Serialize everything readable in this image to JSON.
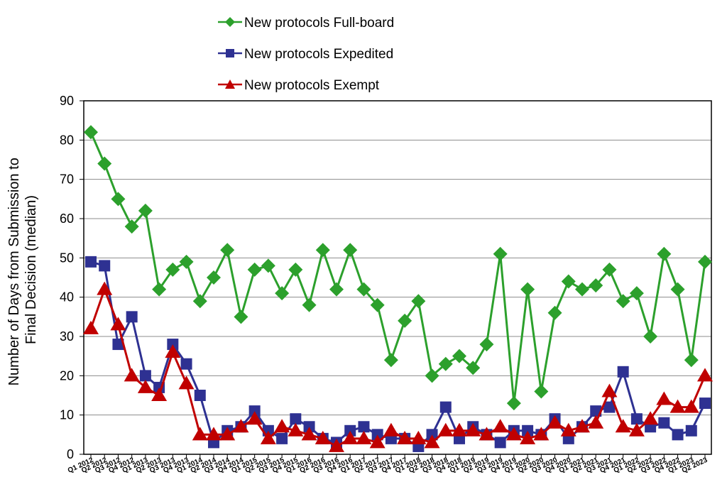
{
  "chart_data": {
    "type": "line",
    "ylabel_lines": [
      "Number of Days from Submission to",
      "Final Decision (median)"
    ],
    "xlabel": "",
    "ylim": [
      0,
      90
    ],
    "yticks": [
      0,
      10,
      20,
      30,
      40,
      50,
      60,
      70,
      80,
      90
    ],
    "grid": true,
    "legend_position": "top",
    "categories": [
      "Q1 2012",
      "Q2 2012",
      "Q3 2012",
      "Q4 2012",
      "Q1 2013",
      "Q2 2013",
      "Q3 2013",
      "Q4 2013",
      "Q1 2014",
      "Q2 2014",
      "Q3 2014",
      "Q4 2014",
      "Q1 2015",
      "Q2 2015",
      "Q3 2015",
      "Q4 2015",
      "Q1 2016",
      "Q2 2016",
      "Q3 2016",
      "Q4 2016",
      "Q1 2017",
      "Q2 2017",
      "Q3 2017",
      "Q4 2017",
      "Q1 2018",
      "Q2 2018",
      "Q3 2018",
      "Q4 2018",
      "Q1 2019",
      "Q2 2019",
      "Q3 2019",
      "Q4 2019",
      "Q1 2020",
      "Q2 2020",
      "Q3 2020",
      "Q4 2020",
      "Q1 2021",
      "Q2 2021",
      "Q3 2021",
      "Q4 2021",
      "Q1 2022",
      "Q2 2022",
      "Q3 2022",
      "Q4 2022",
      "Q1 2023",
      "Q2 2023"
    ],
    "series": [
      {
        "name": "New protocols Full-board",
        "color": "#2ca02c",
        "marker": "diamond",
        "values": [
          82,
          74,
          65,
          58,
          62,
          42,
          47,
          49,
          39,
          45,
          52,
          35,
          47,
          48,
          41,
          47,
          38,
          52,
          42,
          52,
          42,
          38,
          24,
          34,
          39,
          20,
          23,
          25,
          22,
          28,
          51,
          13,
          42,
          16,
          36,
          44,
          42,
          43,
          47,
          39,
          41,
          30,
          51,
          42,
          24,
          49
        ]
      },
      {
        "name": "New protocols Expedited",
        "color": "#2e3192",
        "marker": "square",
        "values": [
          49,
          48,
          28,
          35,
          20,
          17,
          28,
          23,
          15,
          3,
          6,
          7,
          11,
          6,
          4,
          9,
          7,
          4,
          3,
          6,
          7,
          5,
          4,
          4,
          2,
          5,
          12,
          4,
          7,
          5,
          3,
          6,
          6,
          5,
          9,
          4,
          7,
          11,
          12,
          21,
          9,
          7,
          8,
          5,
          6,
          13
        ]
      },
      {
        "name": "New protocols Exempt",
        "color": "#c00000",
        "marker": "triangle",
        "values": [
          32,
          42,
          33,
          20,
          17,
          15,
          26,
          18,
          5,
          5,
          5,
          7,
          9,
          4,
          7,
          6,
          5,
          4,
          2,
          4,
          4,
          3,
          6,
          4,
          4,
          3,
          6,
          6,
          6,
          5,
          7,
          5,
          4,
          5,
          8,
          6,
          7,
          8,
          16,
          7,
          6,
          9,
          14,
          12,
          12,
          20
        ]
      }
    ]
  }
}
